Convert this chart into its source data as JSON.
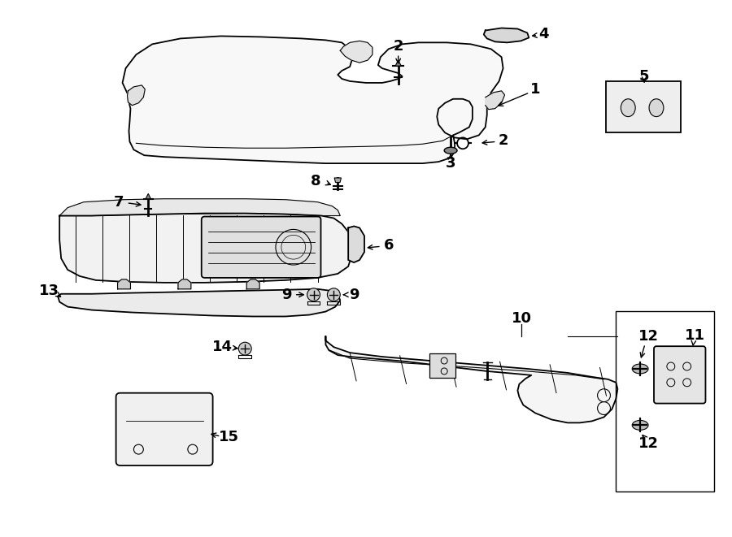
{
  "bg_color": "#ffffff",
  "line_color": "#000000",
  "fig_width": 9.0,
  "fig_height": 6.61,
  "parts": {
    "bumper_cover_color": "#f8f8f8",
    "grille_color": "#f2f2f2",
    "reinforcement_color": "#f5f5f5"
  }
}
